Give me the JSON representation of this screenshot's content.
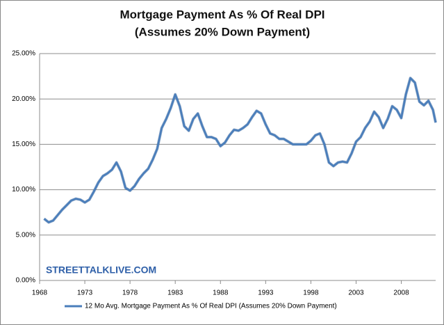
{
  "chart_data": {
    "type": "line",
    "title": "Mortgage Payment As % Of Real DPI",
    "subtitle": "(Assumes 20% Down Payment)",
    "annotation": "STREETTALKLIVE.COM",
    "x": [
      1968.5,
      1969,
      1969.5,
      1970,
      1970.5,
      1971,
      1971.5,
      1972,
      1972.5,
      1973,
      1973.5,
      1974,
      1974.5,
      1975,
      1975.5,
      1976,
      1976.5,
      1977,
      1977.5,
      1978,
      1978.5,
      1979,
      1979.5,
      1980,
      1980.5,
      1981,
      1981.5,
      1982,
      1982.5,
      1983,
      1983.5,
      1984,
      1984.5,
      1985,
      1985.5,
      1986,
      1986.5,
      1987,
      1987.5,
      1988,
      1988.5,
      1989,
      1989.5,
      1990,
      1990.5,
      1991,
      1991.5,
      1992,
      1992.5,
      1993,
      1993.5,
      1994,
      1994.5,
      1995,
      1995.5,
      1996,
      1996.5,
      1997,
      1997.5,
      1998,
      1998.5,
      1999,
      1999.5,
      2000,
      2000.5,
      2001,
      2001.5,
      2002,
      2002.5,
      2003,
      2003.5,
      2004,
      2004.5,
      2005,
      2005.5,
      2006,
      2006.5,
      2007,
      2007.5,
      2008,
      2008.5,
      2009,
      2009.5,
      2010,
      2010.5,
      2011,
      2011.5,
      2011.8
    ],
    "series": [
      {
        "name": "12 Mo Avg. Mortgage Payment As % Of Real DPI (Assumes 20% Down Payment)",
        "color": "#4a7ebb",
        "values": [
          6.8,
          6.4,
          6.6,
          7.2,
          7.8,
          8.3,
          8.8,
          9.0,
          8.9,
          8.6,
          8.9,
          9.8,
          10.8,
          11.5,
          11.8,
          12.2,
          13.0,
          12.0,
          10.2,
          9.9,
          10.4,
          11.2,
          11.8,
          12.3,
          13.3,
          14.5,
          16.8,
          17.8,
          19.0,
          20.5,
          19.2,
          17.0,
          16.5,
          17.8,
          18.4,
          17.0,
          15.8,
          15.8,
          15.6,
          14.8,
          15.2,
          16.0,
          16.6,
          16.5,
          16.8,
          17.2,
          18.0,
          18.7,
          18.4,
          17.2,
          16.2,
          16.0,
          15.6,
          15.6,
          15.3,
          15.0,
          15.0,
          15.0,
          15.0,
          15.4,
          16.0,
          16.2,
          15.0,
          13.0,
          12.6,
          13.0,
          13.1,
          13.0,
          14.0,
          15.3,
          15.8,
          16.8,
          17.5,
          18.6,
          18.0,
          16.8,
          17.8,
          19.2,
          18.8,
          17.9,
          20.5,
          22.3,
          21.8,
          19.7,
          19.3,
          19.8,
          18.8,
          17.4
        ]
      }
    ],
    "xlim": [
      1968,
      2011.8
    ],
    "xticks": [
      1968,
      1973,
      1978,
      1983,
      1988,
      1993,
      1998,
      2003,
      2008
    ],
    "ylim": [
      0,
      25
    ],
    "yticks": [
      {
        "value": 0,
        "label": "0.00%"
      },
      {
        "value": 5,
        "label": "5.00%"
      },
      {
        "value": 10,
        "label": "10.00%"
      },
      {
        "value": 15,
        "label": "15.00%"
      },
      {
        "value": 20,
        "label": "20.00%"
      },
      {
        "value": 25,
        "label": "25.00%"
      }
    ],
    "grid": true
  }
}
